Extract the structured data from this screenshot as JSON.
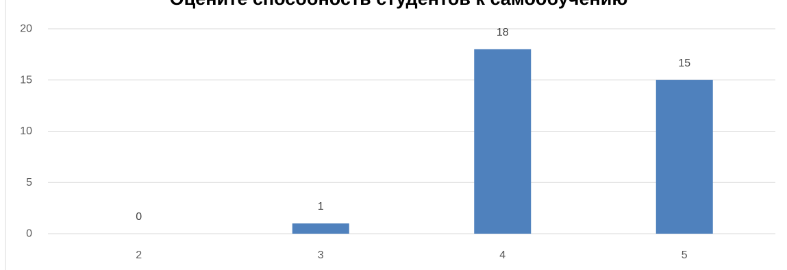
{
  "chart_data": {
    "type": "bar",
    "title": "Оцените  способность студентов  к самообучению",
    "xlabel": "",
    "ylabel": "",
    "categories": [
      "2",
      "3",
      "4",
      "5"
    ],
    "values": [
      0,
      1,
      18,
      15
    ],
    "data_labels": [
      "0",
      "1",
      "18",
      "15"
    ],
    "ylim": [
      0,
      20
    ],
    "yticks": [
      "0",
      "5",
      "10",
      "15",
      "20"
    ],
    "grid": true,
    "legend": false,
    "bar_color": "#4F81BD",
    "grid_color": "#D9D9D9",
    "tick_label_color": "#595959"
  }
}
